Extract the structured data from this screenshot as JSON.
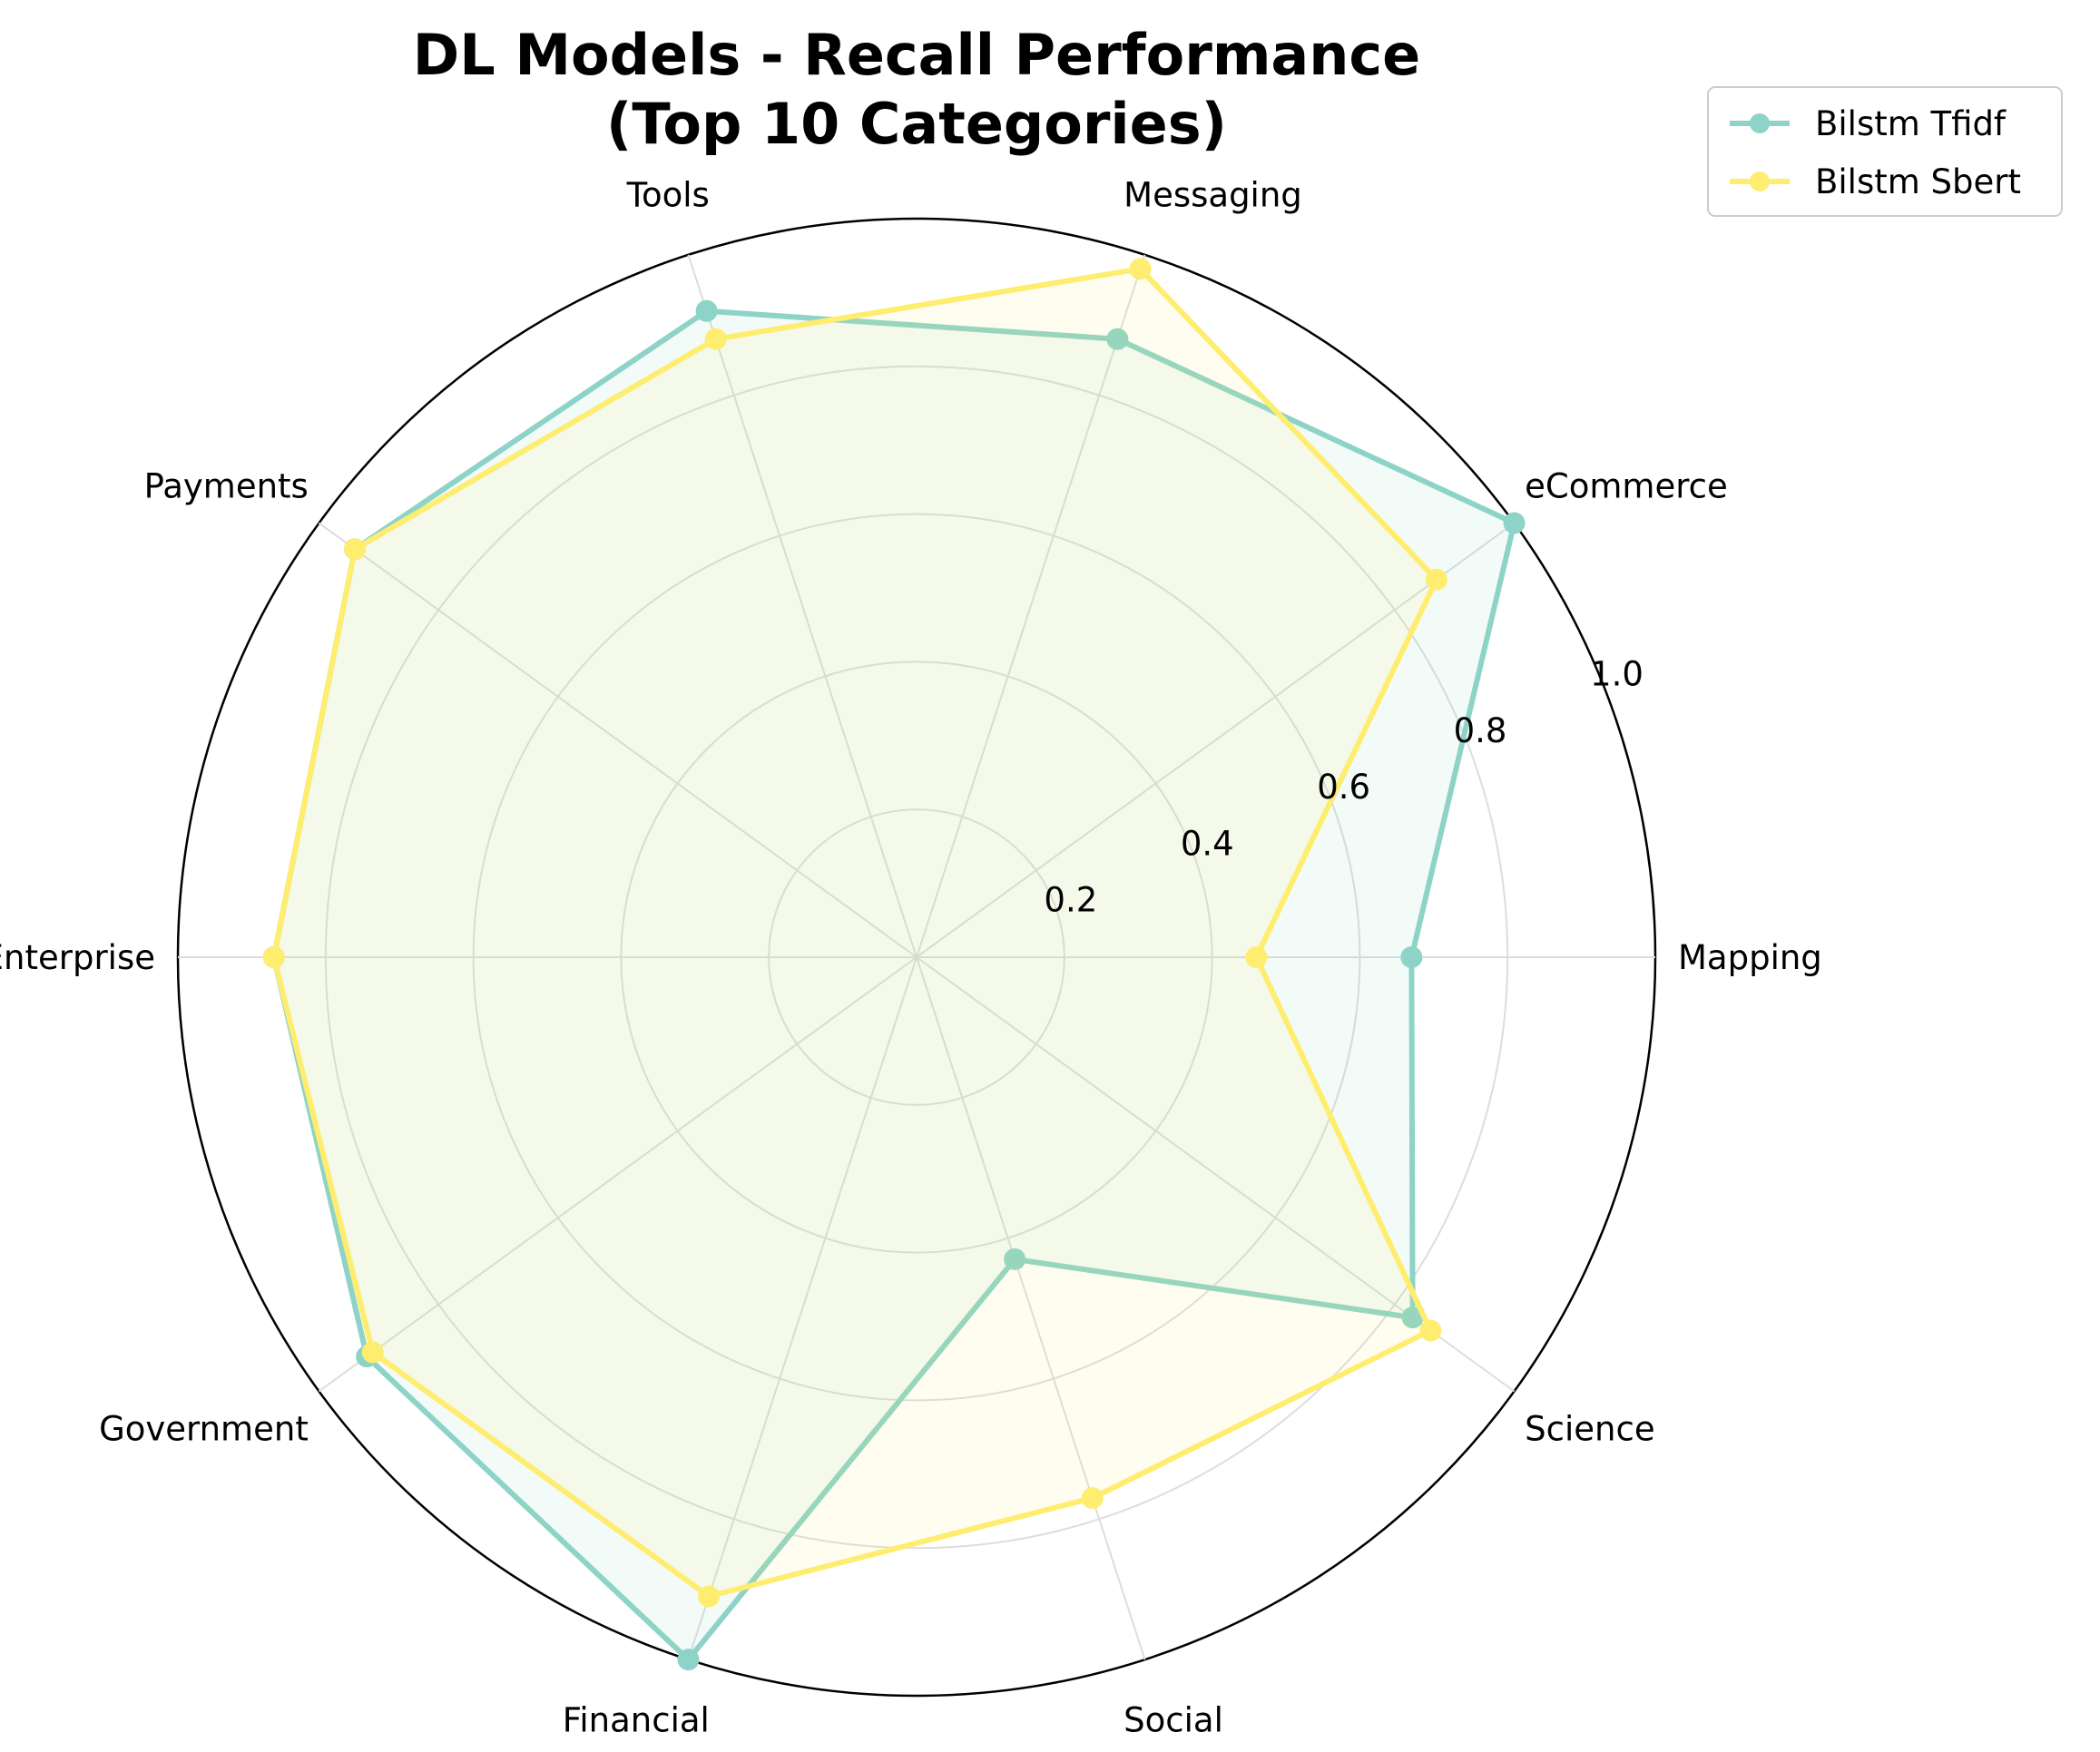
{
  "chart_data": {
    "type": "radar",
    "title": [
      "DL Models - Recall Performance",
      "(Top 10 Categories)"
    ],
    "categories": [
      "Mapping",
      "eCommerce",
      "Messaging",
      "Tools",
      "Payments",
      "Enterprise",
      "Government",
      "Financial",
      "Social",
      "Science"
    ],
    "series": [
      {
        "name": "Bilstm Tfidf",
        "color": "#8dd3c7",
        "values": [
          0.67,
          1.0,
          0.88,
          0.92,
          0.94,
          0.87,
          0.92,
          1.0,
          0.43,
          0.83
        ]
      },
      {
        "name": "Bilstm Sbert",
        "color": "#ffed6f",
        "values": [
          0.46,
          0.87,
          0.98,
          0.88,
          0.94,
          0.87,
          0.91,
          0.91,
          0.77,
          0.86
        ]
      }
    ],
    "rlim": [
      0,
      1.0
    ],
    "rticks": [
      "0.2",
      "0.4",
      "0.6",
      "0.8",
      "1.0"
    ],
    "grid": true,
    "legend_position": "top-right"
  }
}
